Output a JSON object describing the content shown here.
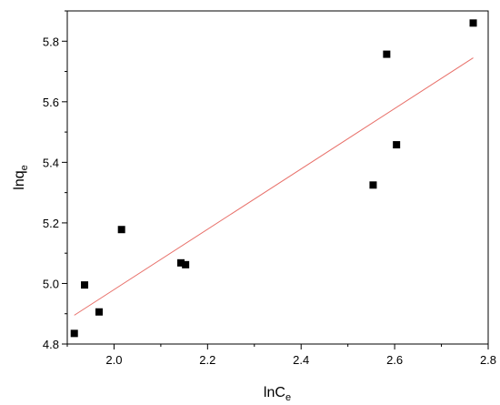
{
  "chart_data": {
    "type": "scatter",
    "xlabel": "lnC",
    "xlabel_sub": "e",
    "ylabel": "lnq",
    "ylabel_sub": "e",
    "xlim": [
      1.9,
      2.8
    ],
    "ylim": [
      4.8,
      5.9
    ],
    "xticks": [
      "2.0",
      "2.2",
      "2.4",
      "2.6",
      "2.8"
    ],
    "yticks": [
      "4.8",
      "5.0",
      "5.2",
      "5.4",
      "5.6",
      "5.8"
    ],
    "x_tick_values": [
      2.0,
      2.2,
      2.4,
      2.6,
      2.8
    ],
    "y_tick_values": [
      4.8,
      5.0,
      5.2,
      5.4,
      5.6,
      5.8
    ],
    "points": [
      {
        "x": 1.915,
        "y": 4.835
      },
      {
        "x": 1.937,
        "y": 4.995
      },
      {
        "x": 1.968,
        "y": 4.906
      },
      {
        "x": 2.016,
        "y": 5.178
      },
      {
        "x": 2.143,
        "y": 5.068
      },
      {
        "x": 2.153,
        "y": 5.062
      },
      {
        "x": 2.554,
        "y": 5.325
      },
      {
        "x": 2.583,
        "y": 5.757
      },
      {
        "x": 2.604,
        "y": 5.458
      },
      {
        "x": 2.768,
        "y": 5.86
      }
    ],
    "fit_line": {
      "x": [
        1.915,
        2.768
      ],
      "y": [
        4.895,
        5.745
      ]
    },
    "grid": false,
    "legend": false,
    "colors": {
      "points": "#000000",
      "fit_line": "#e8706a",
      "axis": "#000000"
    }
  }
}
